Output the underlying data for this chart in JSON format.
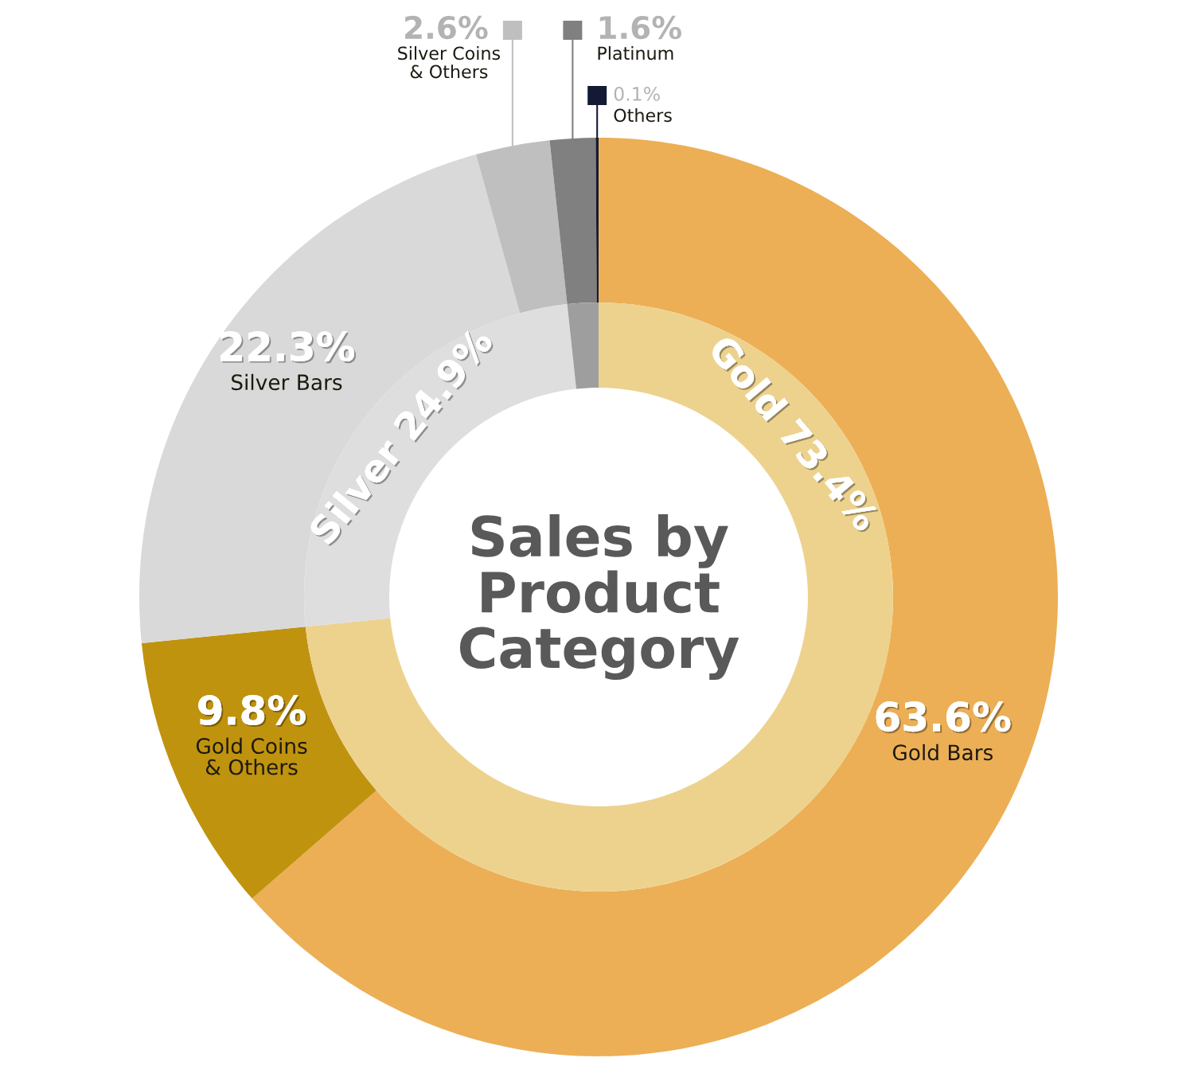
{
  "chart_data": {
    "type": "donut",
    "title": "Sales by Product Category",
    "series": [
      {
        "values": [
          73.4,
          24.9,
          1.7
        ],
        "value_labels": [
          "Gold 73.4%",
          "Silver 24.9%",
          null
        ],
        "colors": [
          "#edd28e",
          "#dedede",
          "#9e9e9e"
        ]
      },
      {
        "values": [
          63.6,
          9.8,
          22.3,
          2.6,
          1.6,
          0.1
        ],
        "value_labels": [
          "63.6% Gold Bars",
          "9.8% Gold Coins & Others",
          "22.3% Silver Bars",
          "2.6% Silver Coins & Others",
          "1.6% Platinum",
          "0.1% Others"
        ],
        "colors": [
          "#ecaf55",
          "#c0930f",
          "#d9d9d9",
          "#bfbfbf",
          "#808080",
          "#141a33"
        ]
      }
    ]
  }
}
